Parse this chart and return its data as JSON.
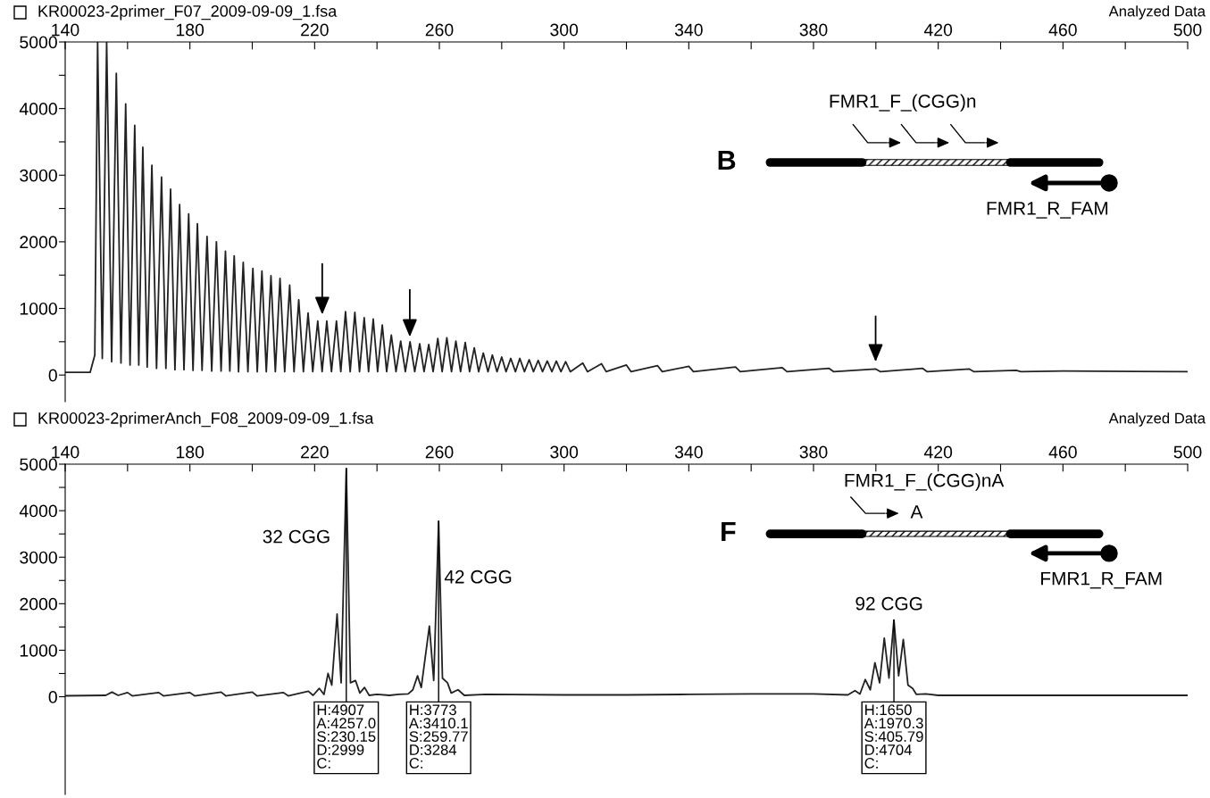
{
  "chart_data": [
    {
      "type": "line",
      "title": "KR00023-2primer_F07_2009-09-09_1.fsa",
      "subtitle": "Analyzed Data",
      "xlim": [
        140,
        500
      ],
      "xticks": [
        140,
        {
          "value": 160,
          "label": null
        },
        180,
        {
          "value": 200,
          "label": null
        },
        220,
        {
          "value": 240,
          "label": null
        },
        260,
        {
          "value": 280,
          "label": null
        },
        300,
        {
          "value": 320,
          "label": null
        },
        340,
        {
          "value": 360,
          "label": null
        },
        380,
        {
          "value": 400,
          "label": null
        },
        420,
        {
          "value": 440,
          "label": null
        },
        460,
        {
          "value": 480,
          "label": null
        },
        500
      ],
      "ylim": [
        -400,
        5000
      ],
      "yticks": [
        0,
        {
          "value": 500,
          "label": null
        },
        1000,
        {
          "value": 1500,
          "label": null
        },
        2000,
        {
          "value": 2500,
          "label": null
        },
        3000,
        {
          "value": 3500,
          "label": null
        },
        4000,
        {
          "value": 4500,
          "label": null
        },
        5000
      ],
      "marker": "none",
      "line_style": "solid",
      "series": [
        {
          "color": "#222222",
          "x": [
            140,
            148,
            149.5,
            150.4,
            151.9,
            153.3,
            154.9,
            156.4,
            157.9,
            159.4,
            160.8,
            162.3,
            163.6,
            164.9,
            166.3,
            167.8,
            169.3,
            170.9,
            172.3,
            173.8,
            175.2,
            176.7,
            178.1,
            179.6,
            181.0,
            182.4,
            183.9,
            185.5,
            187.0,
            188.5,
            190.0,
            191.4,
            192.8,
            194.2,
            195.6,
            197.1,
            198.6,
            200.2,
            201.6,
            203.1,
            204.5,
            206.0,
            207.4,
            208.9,
            210.4,
            212.0,
            213.4,
            214.9,
            216.4,
            217.9,
            219.4,
            221.0,
            222.4,
            223.9,
            225.4,
            227.0,
            228.4,
            229.9,
            231.4,
            232.9,
            234.4,
            235.9,
            237.3,
            238.8,
            240.2,
            241.7,
            243.1,
            244.6,
            246.1,
            247.6,
            249.1,
            250.6,
            252.1,
            253.7,
            255.1,
            256.6,
            258.0,
            259.5,
            260.9,
            262.4,
            263.9,
            265.3,
            266.8,
            268.3,
            269.7,
            271.2,
            272.6,
            274.1,
            275.6,
            277.0,
            278.5,
            280.0,
            281.4,
            282.9,
            284.4,
            285.8,
            287.3,
            288.8,
            290.2,
            291.7,
            293.1,
            294.6,
            296.1,
            297.5,
            299.0,
            300.5,
            302,
            306,
            307.5,
            312,
            313.5,
            320,
            321.5,
            330,
            331.5,
            340,
            341.5,
            355,
            356.5,
            370,
            371.5,
            385,
            386.5,
            400,
            401.5,
            415,
            416.5,
            430,
            431.5,
            445,
            446.5,
            460,
            500
          ],
          "values": [
            40,
            40,
            300,
            5000,
            250,
            5000,
            200,
            4530,
            180,
            4070,
            150,
            3750,
            150,
            3420,
            120,
            3150,
            100,
            2970,
            100,
            2790,
            80,
            2560,
            80,
            2420,
            70,
            2270,
            70,
            2080,
            60,
            2000,
            60,
            1860,
            60,
            1790,
            50,
            1690,
            50,
            1600,
            50,
            1560,
            50,
            1490,
            50,
            1450,
            50,
            1350,
            50,
            1130,
            50,
            930,
            50,
            810,
            50,
            810,
            50,
            810,
            50,
            950,
            50,
            940,
            50,
            860,
            50,
            840,
            50,
            750,
            50,
            600,
            50,
            510,
            50,
            500,
            50,
            470,
            50,
            460,
            50,
            550,
            50,
            560,
            50,
            510,
            50,
            490,
            50,
            410,
            50,
            330,
            50,
            300,
            50,
            270,
            50,
            250,
            50,
            250,
            50,
            230,
            50,
            220,
            50,
            210,
            50,
            210,
            50,
            200,
            50,
            180,
            50,
            170,
            50,
            150,
            50,
            140,
            50,
            130,
            50,
            120,
            50,
            110,
            50,
            100,
            50,
            90,
            50,
            100,
            50,
            90,
            50,
            70,
            50,
            60,
            50
          ]
        }
      ],
      "annotations": [
        "B",
        "FMR1_F_(CGG)n",
        "FMR1_R_FAM"
      ]
    },
    {
      "type": "line",
      "title": "KR00023-2primerAnch_F08_2009-09-09_1.fsa",
      "subtitle": "Analyzed Data",
      "xlim": [
        140,
        500
      ],
      "xticks": [
        140,
        {
          "value": 160,
          "label": null
        },
        180,
        {
          "value": 200,
          "label": null
        },
        220,
        {
          "value": 240,
          "label": null
        },
        260,
        {
          "value": 280,
          "label": null
        },
        300,
        {
          "value": 320,
          "label": null
        },
        340,
        {
          "value": 360,
          "label": null
        },
        380,
        {
          "value": 400,
          "label": null
        },
        420,
        {
          "value": 440,
          "label": null
        },
        460,
        {
          "value": 480,
          "label": null
        },
        500
      ],
      "ylim": [
        -2100,
        5000
      ],
      "yticks": [
        0,
        {
          "value": 500,
          "label": null
        },
        1000,
        {
          "value": 1500,
          "label": null
        },
        2000,
        {
          "value": 2500,
          "label": null
        },
        3000,
        {
          "value": 3500,
          "label": null
        },
        4000,
        {
          "value": 4500,
          "label": null
        },
        5000
      ],
      "marker": "none",
      "line_style": "solid",
      "series": [
        {
          "color": "#222222",
          "x": [
            140,
            153,
            155,
            157,
            160,
            161.5,
            170,
            171.5,
            180,
            181.5,
            190,
            191.5,
            200,
            201.5,
            210,
            211.5,
            218,
            219.5,
            221.5,
            223,
            224.3,
            225.5,
            227.2,
            228.5,
            230.15,
            231.5,
            233.1,
            234.5,
            236,
            237.5,
            240,
            244,
            247,
            250,
            251.5,
            253,
            254.2,
            256.8,
            258.2,
            259.77,
            261,
            262.6,
            263.8,
            266,
            268,
            275,
            300,
            320,
            340,
            360,
            380,
            391,
            393.3,
            394.9,
            396.6,
            398.2,
            399.7,
            401.2,
            402.7,
            404.2,
            405.79,
            407.3,
            408.8,
            410.3,
            411.8,
            413,
            416,
            420,
            500
          ],
          "values": [
            20,
            30,
            100,
            30,
            90,
            20,
            90,
            20,
            90,
            20,
            100,
            20,
            100,
            20,
            90,
            20,
            120,
            30,
            180,
            50,
            500,
            250,
            1780,
            300,
            4907,
            300,
            350,
            80,
            200,
            30,
            50,
            30,
            50,
            60,
            150,
            450,
            200,
            1520,
            350,
            3773,
            400,
            300,
            80,
            150,
            30,
            50,
            40,
            40,
            50,
            60,
            60,
            40,
            130,
            60,
            370,
            150,
            730,
            300,
            1260,
            400,
            1650,
            450,
            1230,
            250,
            180,
            50,
            60,
            30,
            30
          ]
        }
      ],
      "annotations": [
        {
          "text": "H:4907\nA:4257.0\nS:230.15\nD:2999\nC:",
          "x": 230.15,
          "y": 4907
        },
        {
          "text": "H:3773\nA:3410.1\nS:259.77\nD:3284\nC:",
          "x": 259.77,
          "y": 3773
        },
        {
          "text": "H:1650\nA:1970.3\nS:405.79\nD:4704\nC:",
          "x": 405.79,
          "y": 1650
        },
        "32 CGG",
        "42 CGG",
        "92 CGG",
        "F",
        "FMR1_F_(CGG)nA",
        "FMR1_R_FAM",
        "A"
      ]
    }
  ]
}
